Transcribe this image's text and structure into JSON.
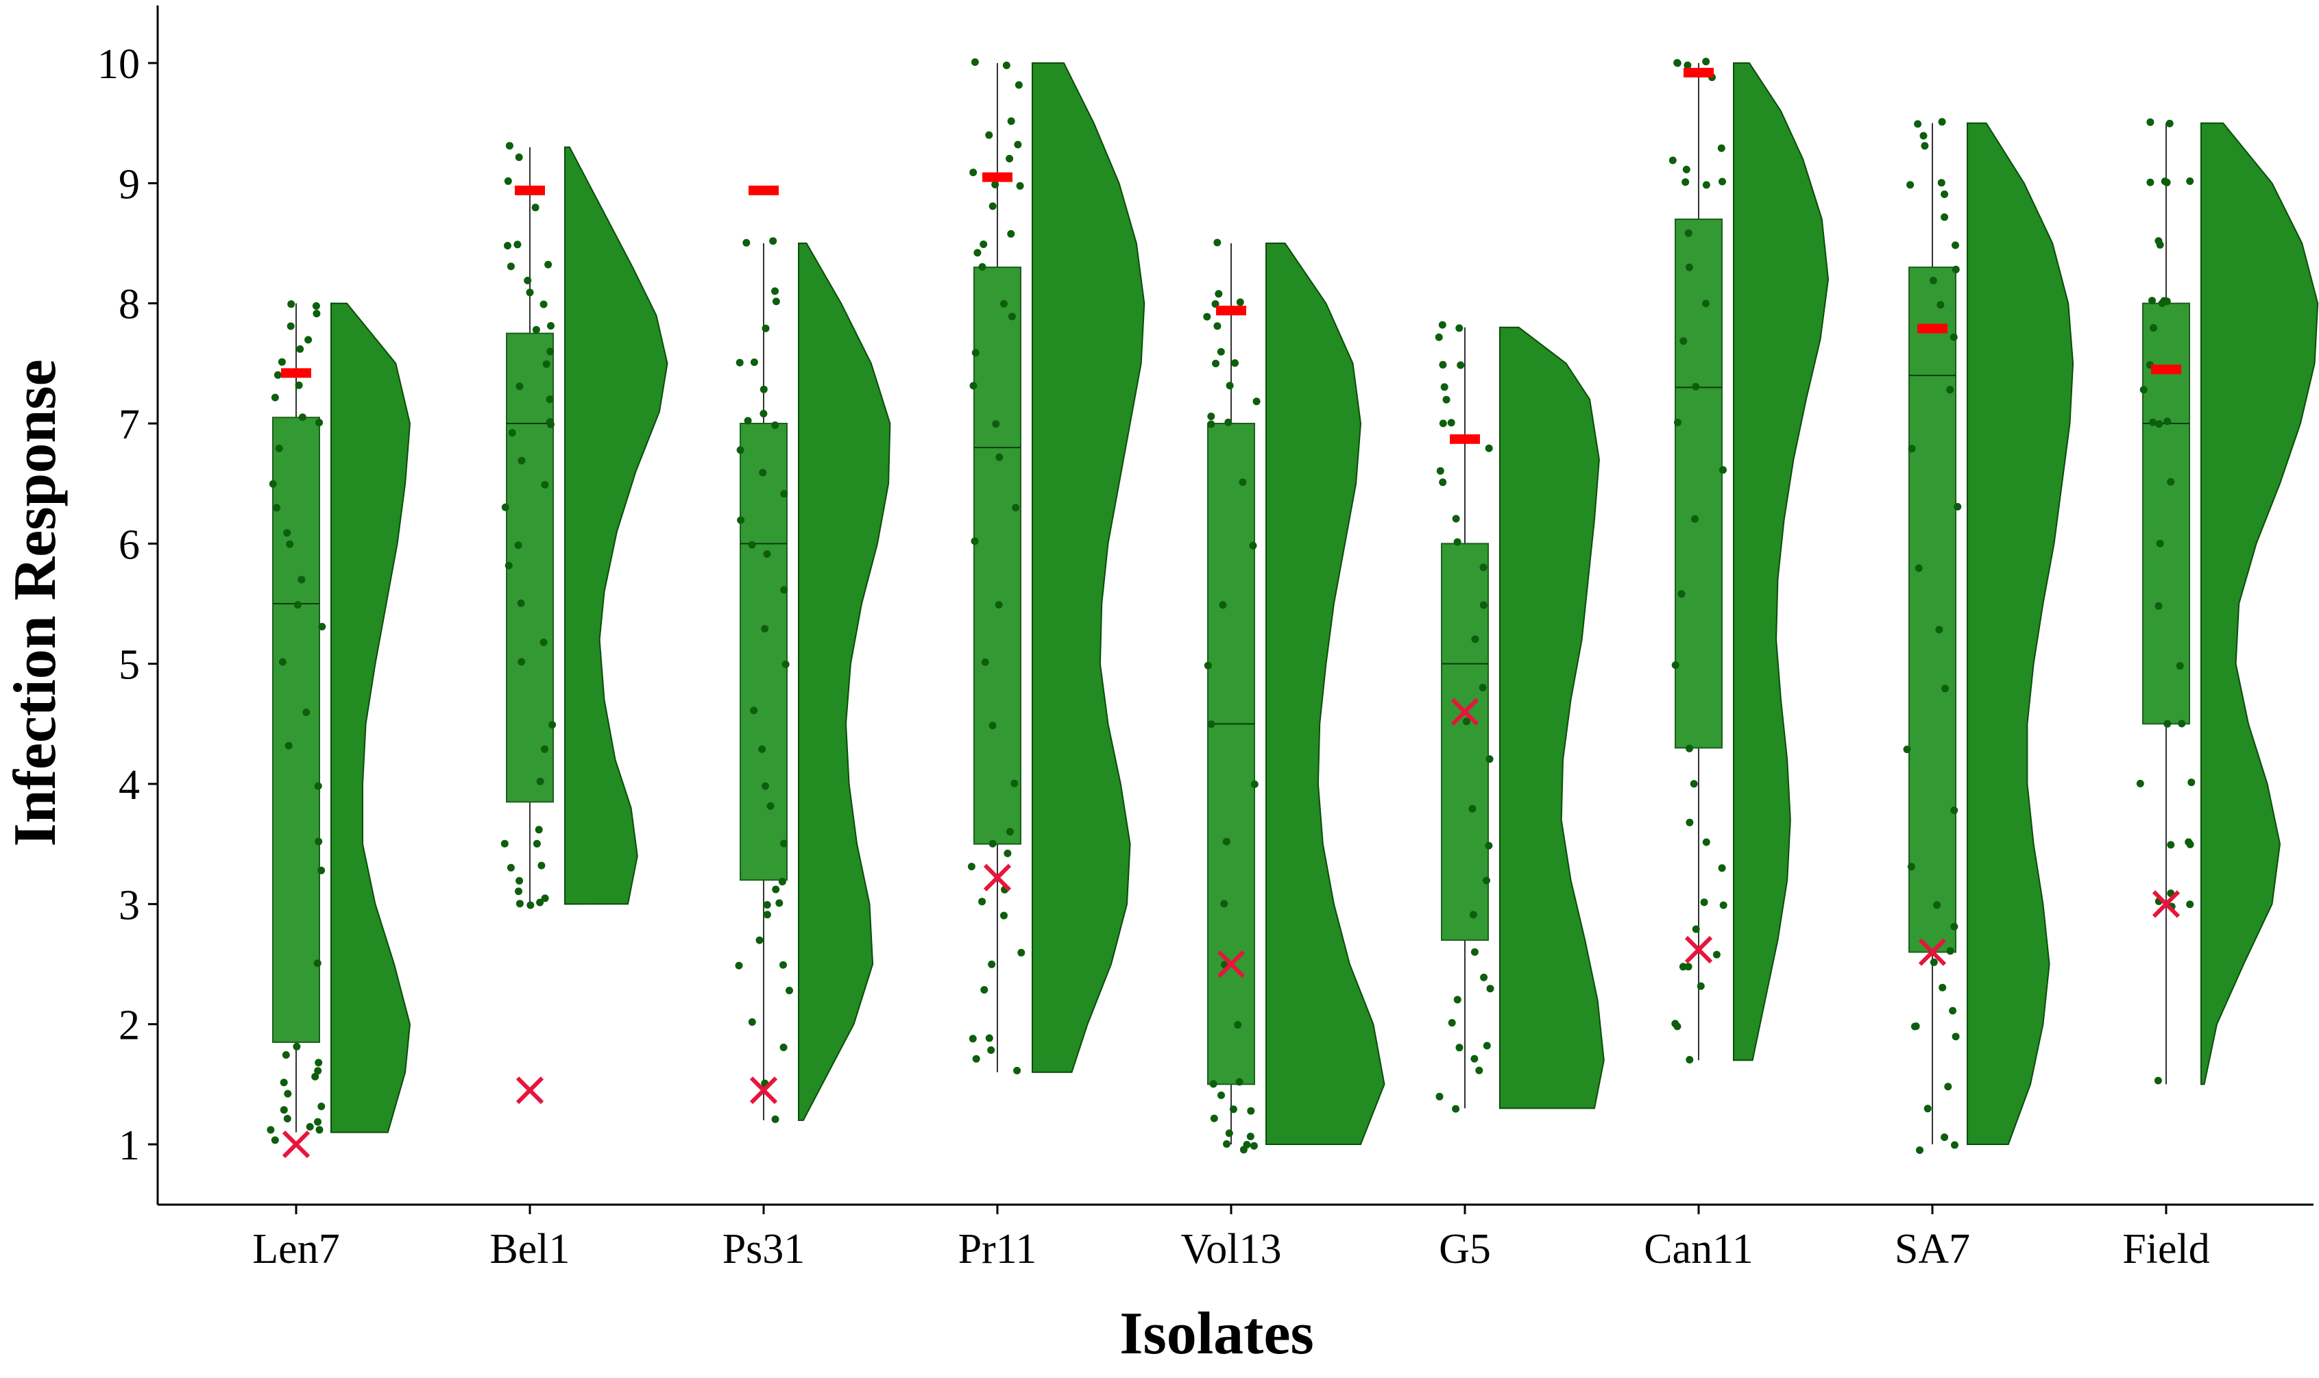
{
  "chart_data": {
    "type": "raincloud",
    "title": "",
    "xlabel": "Isolates",
    "ylabel": "Infection Response",
    "ylim": [
      0.5,
      10.4
    ],
    "yticks": [
      1,
      2,
      3,
      4,
      5,
      6,
      7,
      8,
      9,
      10
    ],
    "grid": false,
    "categories": [
      "Len7",
      "Bel1",
      "Ps31",
      "Pr11",
      "Vol13",
      "G5",
      "Can11",
      "SA7",
      "Field"
    ],
    "colors": {
      "box_fill": "#339933",
      "density_fill": "#228b22",
      "points": "#0d5e0d",
      "mean_marker": "#ff0000",
      "cross_marker": "#e8143c",
      "axis": "#000000"
    },
    "boxes": [
      {
        "q1": 1.85,
        "median": 5.5,
        "q3": 7.05,
        "whisker_low": 1.1,
        "whisker_high": 8.0
      },
      {
        "q1": 3.85,
        "median": 7.0,
        "q3": 7.75,
        "whisker_low": 3.0,
        "whisker_high": 9.3
      },
      {
        "q1": 3.2,
        "median": 6.0,
        "q3": 7.0,
        "whisker_low": 1.2,
        "whisker_high": 8.5
      },
      {
        "q1": 3.5,
        "median": 6.8,
        "q3": 8.3,
        "whisker_low": 1.6,
        "whisker_high": 10.0
      },
      {
        "q1": 1.5,
        "median": 4.5,
        "q3": 7.0,
        "whisker_low": 1.0,
        "whisker_high": 8.5
      },
      {
        "q1": 2.7,
        "median": 5.0,
        "q3": 6.0,
        "whisker_low": 1.3,
        "whisker_high": 7.8
      },
      {
        "q1": 4.3,
        "median": 7.3,
        "q3": 8.7,
        "whisker_low": 1.7,
        "whisker_high": 10.0
      },
      {
        "q1": 2.6,
        "median": 7.4,
        "q3": 8.3,
        "whisker_low": 1.0,
        "whisker_high": 9.5
      },
      {
        "q1": 4.5,
        "median": 7.0,
        "q3": 8.0,
        "whisker_low": 1.5,
        "whisker_high": 9.5
      }
    ],
    "red_dash_values": [
      7.42,
      8.94,
      8.94,
      9.05,
      7.94,
      6.87,
      9.92,
      7.79,
      7.45
    ],
    "x_marker_values": [
      1.0,
      1.45,
      1.45,
      3.22,
      2.5,
      4.6,
      2.62,
      2.6,
      3.0
    ],
    "density": [
      {
        "min": 1.1,
        "max": 8.0,
        "y": [
          1.1,
          1.6,
          2.0,
          2.5,
          3.0,
          3.5,
          4.0,
          4.5,
          5.0,
          5.5,
          6.0,
          6.5,
          7.0,
          7.5,
          8.0
        ],
        "w": [
          0.36,
          0.47,
          0.5,
          0.4,
          0.28,
          0.2,
          0.2,
          0.22,
          0.28,
          0.35,
          0.42,
          0.47,
          0.5,
          0.41,
          0.1
        ]
      },
      {
        "min": 3.0,
        "max": 9.3,
        "y": [
          3.0,
          3.4,
          3.8,
          4.2,
          4.7,
          5.2,
          5.6,
          6.1,
          6.6,
          7.1,
          7.5,
          7.9,
          8.3,
          8.7,
          9.0,
          9.3
        ],
        "w": [
          0.4,
          0.46,
          0.42,
          0.32,
          0.25,
          0.22,
          0.25,
          0.33,
          0.45,
          0.6,
          0.65,
          0.58,
          0.43,
          0.27,
          0.15,
          0.03
        ]
      },
      {
        "min": 1.2,
        "max": 8.5,
        "y": [
          1.2,
          1.5,
          2.0,
          2.5,
          3.0,
          3.5,
          4.0,
          4.5,
          5.0,
          5.5,
          6.0,
          6.5,
          7.0,
          7.5,
          8.0,
          8.5
        ],
        "w": [
          0.03,
          0.15,
          0.35,
          0.47,
          0.45,
          0.37,
          0.32,
          0.3,
          0.33,
          0.4,
          0.5,
          0.57,
          0.58,
          0.46,
          0.27,
          0.05
        ]
      },
      {
        "min": 1.6,
        "max": 10.0,
        "y": [
          1.6,
          2.0,
          2.5,
          3.0,
          3.5,
          4.0,
          4.5,
          5.0,
          5.5,
          6.0,
          6.5,
          7.0,
          7.5,
          8.0,
          8.5,
          9.0,
          9.5,
          10.0
        ],
        "w": [
          0.25,
          0.35,
          0.5,
          0.6,
          0.62,
          0.56,
          0.48,
          0.43,
          0.44,
          0.48,
          0.55,
          0.62,
          0.69,
          0.71,
          0.66,
          0.55,
          0.39,
          0.2
        ]
      },
      {
        "min": 1.0,
        "max": 8.5,
        "y": [
          1.0,
          1.5,
          2.0,
          2.5,
          3.0,
          3.5,
          4.0,
          4.5,
          5.0,
          5.5,
          6.0,
          6.5,
          7.0,
          7.5,
          8.0,
          8.5
        ],
        "w": [
          0.6,
          0.75,
          0.68,
          0.53,
          0.43,
          0.36,
          0.33,
          0.34,
          0.38,
          0.43,
          0.5,
          0.57,
          0.6,
          0.55,
          0.38,
          0.12
        ]
      },
      {
        "min": 1.3,
        "max": 7.8,
        "y": [
          1.3,
          1.7,
          2.2,
          2.7,
          3.2,
          3.7,
          4.2,
          4.7,
          5.2,
          5.7,
          6.2,
          6.7,
          7.2,
          7.5,
          7.8
        ],
        "w": [
          0.6,
          0.66,
          0.62,
          0.54,
          0.45,
          0.39,
          0.4,
          0.45,
          0.52,
          0.56,
          0.6,
          0.63,
          0.57,
          0.42,
          0.12
        ]
      },
      {
        "min": 1.7,
        "max": 10.0,
        "y": [
          1.7,
          2.2,
          2.7,
          3.2,
          3.7,
          4.2,
          4.7,
          5.2,
          5.7,
          6.2,
          6.7,
          7.2,
          7.7,
          8.2,
          8.7,
          9.2,
          9.6,
          10.0
        ],
        "w": [
          0.12,
          0.2,
          0.28,
          0.34,
          0.36,
          0.34,
          0.3,
          0.27,
          0.28,
          0.32,
          0.38,
          0.46,
          0.55,
          0.6,
          0.56,
          0.44,
          0.3,
          0.1
        ]
      },
      {
        "min": 1.0,
        "max": 9.5,
        "y": [
          1.0,
          1.5,
          2.0,
          2.5,
          3.0,
          3.5,
          4.0,
          4.5,
          5.0,
          5.5,
          6.0,
          6.5,
          7.0,
          7.5,
          8.0,
          8.5,
          9.0,
          9.5
        ],
        "w": [
          0.26,
          0.4,
          0.48,
          0.52,
          0.48,
          0.42,
          0.38,
          0.38,
          0.42,
          0.48,
          0.55,
          0.6,
          0.65,
          0.67,
          0.64,
          0.54,
          0.36,
          0.12
        ]
      },
      {
        "min": 1.5,
        "max": 9.5,
        "y": [
          1.5,
          2.0,
          2.5,
          3.0,
          3.5,
          4.0,
          4.5,
          5.0,
          5.5,
          6.0,
          6.5,
          7.0,
          7.5,
          8.0,
          8.5,
          9.0,
          9.5
        ],
        "w": [
          0.02,
          0.1,
          0.27,
          0.45,
          0.5,
          0.42,
          0.3,
          0.22,
          0.24,
          0.35,
          0.5,
          0.63,
          0.72,
          0.74,
          0.64,
          0.45,
          0.14
        ]
      }
    ],
    "points": [
      [
        1.05,
        1.1,
        1.1,
        1.15,
        1.2,
        1.2,
        1.3,
        1.3,
        1.4,
        1.5,
        1.55,
        1.6,
        1.7,
        1.75,
        1.8,
        2.5,
        3.3,
        3.5,
        4.0,
        4.3,
        4.6,
        5.0,
        5.3,
        5.5,
        5.7,
        6.0,
        6.1,
        6.3,
        6.5,
        6.8,
        7.0,
        7.05,
        7.2,
        7.3,
        7.4,
        7.5,
        7.6,
        7.7,
        7.8,
        7.9,
        8.0,
        8.0
      ],
      [
        3.0,
        3.0,
        3.0,
        3.05,
        3.1,
        3.2,
        3.3,
        3.3,
        3.5,
        3.5,
        3.6,
        4.0,
        4.3,
        4.5,
        5.0,
        5.2,
        5.5,
        5.8,
        6.0,
        6.3,
        6.5,
        6.7,
        6.9,
        7.0,
        7.0,
        7.2,
        7.3,
        7.5,
        7.6,
        7.8,
        7.8,
        8.0,
        8.1,
        8.2,
        8.3,
        8.3,
        8.5,
        8.5,
        8.8,
        9.0,
        9.2,
        9.3
      ],
      [
        1.2,
        1.5,
        1.8,
        2.0,
        2.3,
        2.5,
        2.5,
        2.7,
        2.9,
        3.0,
        3.0,
        3.1,
        3.2,
        3.5,
        3.8,
        4.0,
        4.3,
        4.6,
        5.0,
        5.3,
        5.6,
        5.9,
        6.0,
        6.2,
        6.4,
        6.6,
        6.8,
        7.0,
        7.0,
        7.1,
        7.3,
        7.5,
        7.5,
        7.8,
        8.0,
        8.1,
        8.5,
        8.5
      ],
      [
        1.6,
        1.7,
        1.8,
        1.9,
        1.9,
        2.3,
        2.5,
        2.6,
        2.9,
        3.0,
        3.1,
        3.3,
        3.4,
        3.5,
        3.6,
        4.0,
        4.5,
        5.0,
        5.5,
        6.0,
        6.3,
        6.7,
        7.0,
        7.3,
        7.6,
        7.9,
        8.0,
        8.3,
        8.4,
        8.5,
        8.6,
        8.8,
        9.0,
        9.0,
        9.1,
        9.2,
        9.3,
        9.4,
        9.5,
        9.8,
        10.0,
        10.0
      ],
      [
        0.97,
        1.0,
        1.0,
        1.0,
        1.05,
        1.1,
        1.2,
        1.3,
        1.3,
        1.4,
        1.5,
        1.5,
        2.0,
        2.5,
        3.0,
        3.5,
        4.0,
        4.5,
        5.0,
        5.5,
        6.0,
        6.5,
        7.0,
        7.0,
        7.05,
        7.2,
        7.3,
        7.5,
        7.5,
        7.6,
        7.8,
        7.9,
        8.0,
        8.0,
        8.1,
        8.5
      ],
      [
        1.3,
        1.4,
        1.6,
        1.7,
        1.8,
        1.8,
        2.0,
        2.2,
        2.3,
        2.4,
        2.6,
        2.9,
        3.2,
        3.5,
        3.8,
        4.2,
        4.5,
        4.8,
        5.2,
        5.5,
        5.8,
        6.0,
        6.2,
        6.5,
        6.6,
        6.8,
        7.0,
        7.0,
        7.2,
        7.3,
        7.5,
        7.5,
        7.7,
        7.8,
        7.8
      ],
      [
        1.7,
        2.0,
        2.0,
        2.3,
        2.5,
        2.5,
        2.6,
        2.8,
        3.0,
        3.0,
        3.3,
        3.5,
        3.7,
        4.0,
        4.3,
        5.0,
        5.6,
        6.2,
        6.6,
        7.0,
        7.3,
        7.7,
        8.0,
        8.3,
        8.6,
        9.0,
        9.0,
        9.0,
        9.1,
        9.2,
        9.3,
        9.9,
        10.0,
        10.0,
        10.0,
        10.0
      ],
      [
        0.97,
        1.0,
        1.05,
        1.3,
        1.5,
        1.9,
        2.0,
        2.0,
        2.1,
        2.3,
        2.5,
        2.6,
        2.8,
        3.0,
        3.3,
        3.8,
        4.3,
        4.8,
        5.3,
        5.8,
        6.3,
        6.8,
        7.3,
        7.7,
        8.0,
        8.2,
        8.3,
        8.5,
        8.7,
        8.9,
        9.0,
        9.0,
        9.3,
        9.4,
        9.5,
        9.5
      ],
      [
        1.55,
        3.0,
        3.0,
        3.0,
        3.1,
        3.5,
        3.5,
        3.5,
        4.0,
        4.0,
        4.5,
        4.5,
        5.0,
        5.5,
        6.0,
        6.5,
        7.0,
        7.0,
        7.0,
        7.3,
        7.5,
        7.8,
        8.0,
        8.0,
        8.0,
        8.0,
        8.5,
        8.5,
        9.0,
        9.0,
        9.0,
        9.0,
        9.5,
        9.5
      ]
    ]
  }
}
